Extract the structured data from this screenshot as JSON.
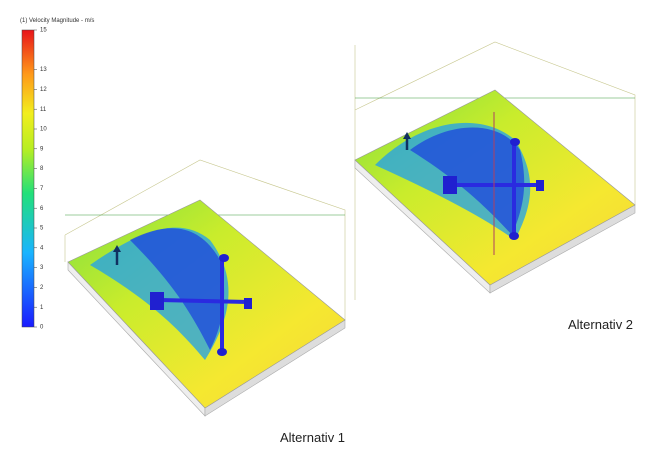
{
  "colorbar": {
    "title": "(1) Velocity Magnitude - m/s",
    "ticks": [
      15,
      13,
      12,
      11,
      10,
      9,
      8,
      7,
      6,
      5,
      4,
      3,
      2,
      1,
      0
    ]
  },
  "captions": [
    "Alternativ 1",
    "Alternativ 2"
  ]
}
